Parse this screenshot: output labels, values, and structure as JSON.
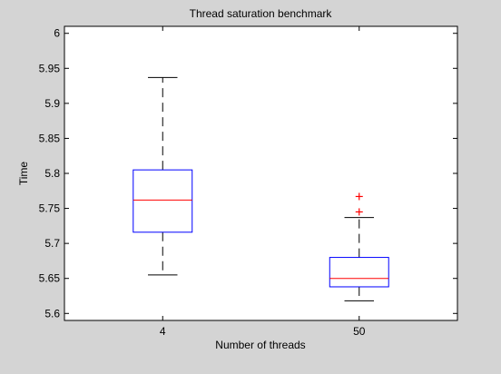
{
  "chart_data": {
    "type": "box",
    "title": "Thread saturation benchmark",
    "xlabel": "Number of threads",
    "ylabel": "Time",
    "ylim": [
      5.59,
      6.01
    ],
    "yticks": [
      5.6,
      5.65,
      5.7,
      5.75,
      5.8,
      5.85,
      5.9,
      5.95,
      6
    ],
    "ytick_labels": [
      "5.6",
      "5.65",
      "5.7",
      "5.75",
      "5.8",
      "5.85",
      "5.9",
      "5.95",
      "6"
    ],
    "categories": [
      "4",
      "50"
    ],
    "boxes": [
      {
        "category": "4",
        "whisker_low": 5.655,
        "q1": 5.716,
        "median": 5.762,
        "q3": 5.805,
        "whisker_high": 5.937,
        "outliers": []
      },
      {
        "category": "50",
        "whisker_low": 5.618,
        "q1": 5.638,
        "median": 5.65,
        "q3": 5.68,
        "whisker_high": 5.737,
        "outliers": [
          5.767,
          5.745
        ]
      }
    ],
    "grid": false,
    "colors": {
      "box": "#0000ff",
      "median": "#ff0000",
      "whisker": "#000000",
      "outlier": "#ff0000",
      "background": "#d4d4d4",
      "axes_background": "#ffffff"
    }
  }
}
